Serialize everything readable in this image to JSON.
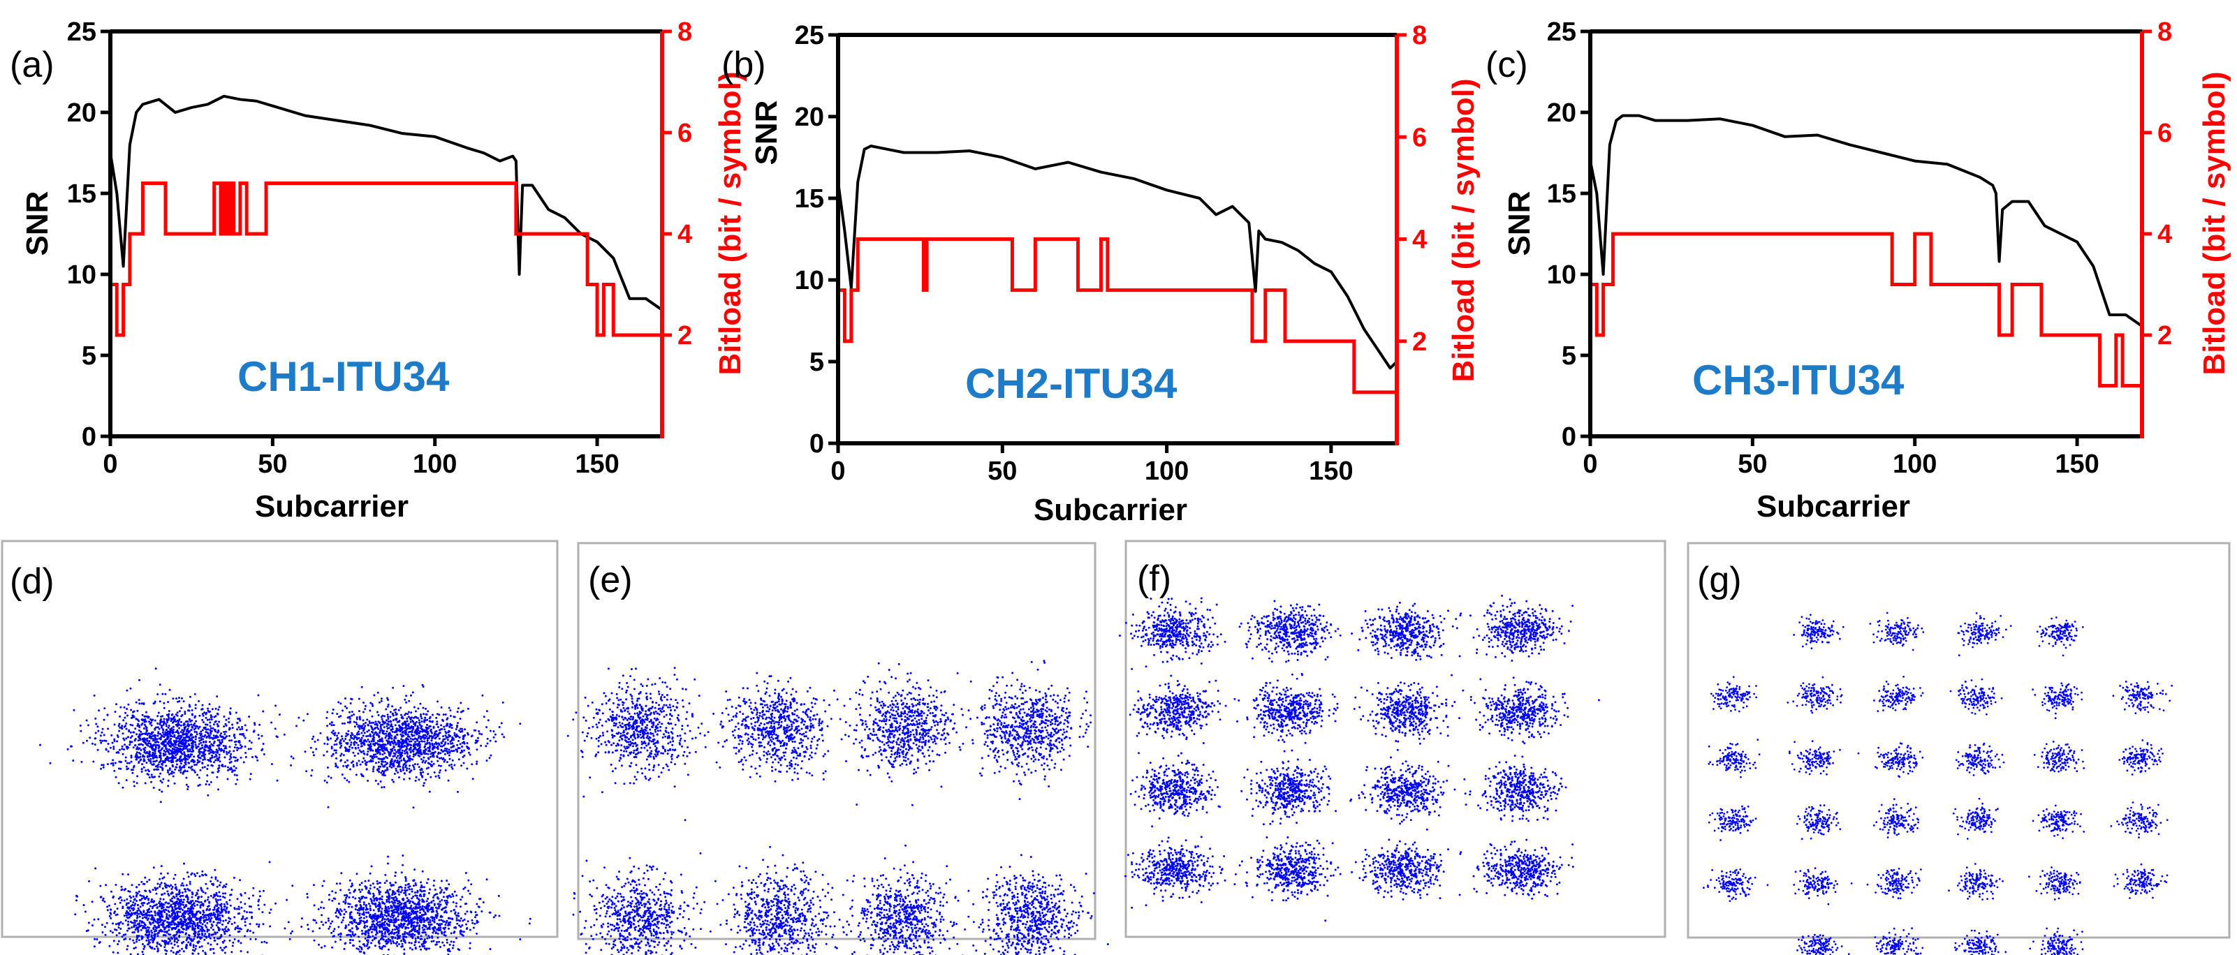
{
  "chart_data": [
    {
      "type": "line",
      "panel_label": "(a)",
      "annotation": "CH1-ITU34",
      "xlabel": "Subcarrier",
      "ylabel": "SNR",
      "y2label": "Bitload (bit / symbol)",
      "xlim": [
        0,
        170
      ],
      "ylim": [
        0,
        25
      ],
      "y2lim": [
        0,
        8
      ],
      "xticks": [
        "0",
        "50",
        "100",
        "150"
      ],
      "yticks": [
        "0",
        "5",
        "10",
        "15",
        "20",
        "25"
      ],
      "y2ticks": [
        "2",
        "4",
        "6",
        "8"
      ],
      "series": [
        {
          "axis": "left",
          "color": "#000000",
          "x": [
            0,
            2,
            4,
            6,
            8,
            10,
            15,
            20,
            25,
            30,
            35,
            40,
            45,
            50,
            60,
            70,
            80,
            90,
            100,
            110,
            115,
            120,
            124,
            125,
            126,
            127,
            130,
            135,
            140,
            145,
            150,
            155,
            160,
            165,
            170
          ],
          "y": [
            17.5,
            15,
            10.5,
            18,
            20,
            20.5,
            20.8,
            20,
            20.3,
            20.5,
            21,
            20.8,
            20.7,
            20.4,
            19.8,
            19.5,
            19.2,
            18.7,
            18.5,
            17.8,
            17.5,
            17,
            17.3,
            17,
            10,
            15.5,
            15.5,
            14,
            13.5,
            12.5,
            12,
            11,
            8.5,
            8.5,
            7.8
          ]
        },
        {
          "axis": "right",
          "color": "#ff0000",
          "step": true,
          "x": [
            0,
            2,
            4,
            6,
            10,
            17,
            32,
            34,
            35,
            36,
            37,
            38,
            40,
            42,
            48,
            125,
            147,
            150,
            152,
            155,
            170
          ],
          "y": [
            3,
            2,
            3,
            4,
            5,
            4,
            5,
            4,
            5,
            4,
            5,
            4,
            5,
            4,
            5,
            4,
            3,
            2,
            3,
            2,
            2
          ]
        }
      ]
    },
    {
      "type": "line",
      "panel_label": "(b)",
      "annotation": "CH2-ITU34",
      "xlabel": "Subcarrier",
      "ylabel": "SNR",
      "y2label": "Bitload (bit / symbol)",
      "xlim": [
        0,
        170
      ],
      "ylim": [
        0,
        25
      ],
      "y2lim": [
        0,
        8
      ],
      "xticks": [
        "0",
        "50",
        "100",
        "150"
      ],
      "yticks": [
        "0",
        "5",
        "10",
        "15",
        "20",
        "25"
      ],
      "y2ticks": [
        "2",
        "4",
        "6",
        "8"
      ],
      "series": [
        {
          "axis": "left",
          "color": "#000000",
          "x": [
            0,
            2,
            4,
            6,
            8,
            10,
            15,
            20,
            30,
            40,
            50,
            60,
            70,
            80,
            90,
            100,
            110,
            115,
            120,
            125,
            127,
            128,
            130,
            135,
            140,
            145,
            150,
            155,
            160,
            165,
            168,
            170
          ],
          "y": [
            16,
            13,
            9.5,
            16,
            18,
            18.2,
            18,
            17.8,
            17.8,
            17.9,
            17.5,
            16.8,
            17.2,
            16.6,
            16.2,
            15.5,
            15,
            14,
            14.5,
            13.5,
            9.3,
            13,
            12.5,
            12.3,
            11.8,
            11,
            10.5,
            9,
            7,
            5.5,
            4.6,
            5
          ]
        },
        {
          "axis": "right",
          "color": "#ff0000",
          "step": true,
          "x": [
            0,
            2,
            4,
            6,
            26,
            27,
            53,
            60,
            73,
            80,
            82,
            84,
            126,
            130,
            136,
            157,
            170
          ],
          "y": [
            3,
            2,
            3,
            4,
            3,
            4,
            3,
            4,
            3,
            4,
            3,
            3,
            2,
            3,
            2,
            1,
            1
          ]
        }
      ]
    },
    {
      "type": "line",
      "panel_label": "(c)",
      "annotation": "CH3-ITU34",
      "xlabel": "Subcarrier",
      "ylabel": "SNR",
      "y2label": "Bitload (bit / symbol)",
      "xlim": [
        0,
        170
      ],
      "ylim": [
        0,
        25
      ],
      "y2lim": [
        0,
        8
      ],
      "xticks": [
        "0",
        "50",
        "100",
        "150"
      ],
      "yticks": [
        "0",
        "5",
        "10",
        "15",
        "20",
        "25"
      ],
      "y2ticks": [
        "2",
        "4",
        "6",
        "8"
      ],
      "series": [
        {
          "axis": "left",
          "color": "#000000",
          "x": [
            0,
            2,
            4,
            6,
            8,
            10,
            15,
            20,
            30,
            40,
            50,
            60,
            70,
            80,
            90,
            100,
            110,
            120,
            124,
            125,
            126,
            127,
            130,
            135,
            140,
            145,
            150,
            155,
            160,
            165,
            170
          ],
          "y": [
            17,
            15,
            10,
            18,
            19.5,
            19.8,
            19.8,
            19.5,
            19.5,
            19.6,
            19.2,
            18.5,
            18.6,
            18,
            17.5,
            17,
            16.8,
            16,
            15.5,
            15,
            10.8,
            14,
            14.5,
            14.5,
            13,
            12.5,
            12,
            10.5,
            7.5,
            7.5,
            6.8
          ]
        },
        {
          "axis": "right",
          "color": "#ff0000",
          "step": true,
          "x": [
            0,
            2,
            4,
            7,
            93,
            100,
            105,
            126,
            130,
            139,
            157,
            160,
            162,
            164,
            170
          ],
          "y": [
            3,
            2,
            3,
            4,
            3,
            4,
            3,
            2,
            3,
            2,
            1,
            1,
            2,
            1,
            1
          ]
        }
      ]
    },
    {
      "type": "scatter",
      "panel_label": "(d)",
      "constellation": "4-point",
      "cols": 2,
      "rows": 2,
      "color": "#0000ff"
    },
    {
      "type": "scatter",
      "panel_label": "(e)",
      "constellation": "8-point",
      "cols": 4,
      "rows": 2,
      "color": "#0000ff"
    },
    {
      "type": "scatter",
      "panel_label": "(f)",
      "constellation": "16-point",
      "cols": 4,
      "rows": 4,
      "color": "#0000ff"
    },
    {
      "type": "scatter",
      "panel_label": "(g)",
      "constellation": "32-point cross",
      "cols": 6,
      "rows": 6,
      "omit_corners": true,
      "color": "#0000ff"
    }
  ]
}
